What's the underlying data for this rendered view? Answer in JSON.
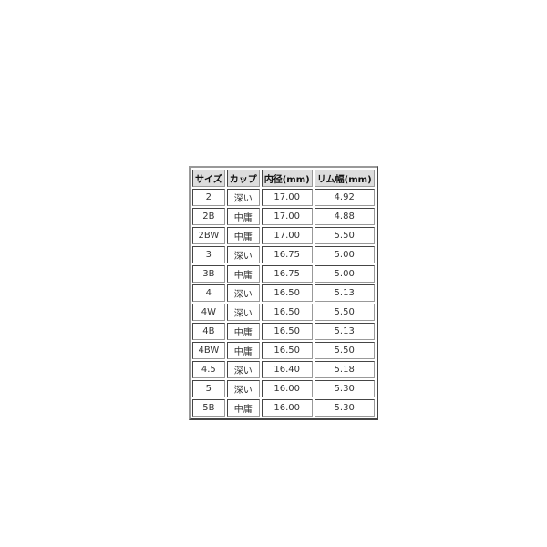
{
  "table": {
    "headers": [
      "サイズ",
      "カップ",
      "内径(mm)",
      "リム幅(mm)"
    ],
    "rows": [
      [
        "2",
        "深い",
        "17.00",
        "4.92"
      ],
      [
        "2B",
        "中庸",
        "17.00",
        "4.88"
      ],
      [
        "2BW",
        "中庸",
        "17.00",
        "5.50"
      ],
      [
        "3",
        "深い",
        "16.75",
        "5.00"
      ],
      [
        "3B",
        "中庸",
        "16.75",
        "5.00"
      ],
      [
        "4",
        "深い",
        "16.50",
        "5.13"
      ],
      [
        "4W",
        "深い",
        "16.50",
        "5.50"
      ],
      [
        "4B",
        "中庸",
        "16.50",
        "5.13"
      ],
      [
        "4BW",
        "中庸",
        "16.50",
        "5.50"
      ],
      [
        "4.5",
        "深い",
        "16.40",
        "5.18"
      ],
      [
        "5",
        "深い",
        "16.00",
        "5.30"
      ],
      [
        "5B",
        "中庸",
        "16.00",
        "5.30"
      ]
    ]
  }
}
